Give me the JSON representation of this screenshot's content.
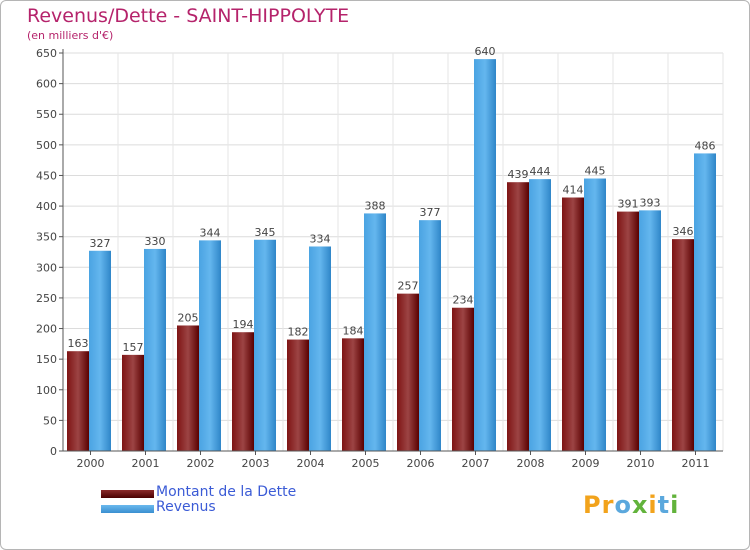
{
  "chart_data": {
    "type": "bar",
    "title": "Revenus/Dette - SAINT-HIPPOLYTE",
    "subtitle": "(en milliers d'€)",
    "categories": [
      "2000",
      "2001",
      "2002",
      "2003",
      "2004",
      "2005",
      "2006",
      "2007",
      "2008",
      "2009",
      "2010",
      "2011"
    ],
    "series": [
      {
        "name": "Montant de la Dette",
        "values": [
          163,
          157,
          205,
          194,
          182,
          184,
          257,
          234,
          439,
          414,
          391,
          346
        ]
      },
      {
        "name": "Revenus",
        "values": [
          327,
          330,
          344,
          345,
          334,
          388,
          377,
          640,
          444,
          445,
          393,
          486
        ]
      }
    ],
    "ylim": [
      0,
      650
    ],
    "yticks": [
      0,
      50,
      100,
      150,
      200,
      250,
      300,
      350,
      400,
      450,
      500,
      550,
      600,
      650
    ],
    "grid": true,
    "legend_position": "bottom-left"
  },
  "colors": {
    "debt_dark": "#6a0000",
    "debt_light": "#9c4444",
    "revenue_dark": "#3a8fd0",
    "revenue_light": "#5bb0ea",
    "title": "#b5236b",
    "legend_text": "#3b5bd6"
  },
  "branding": {
    "logo_text": "Proxiti"
  }
}
